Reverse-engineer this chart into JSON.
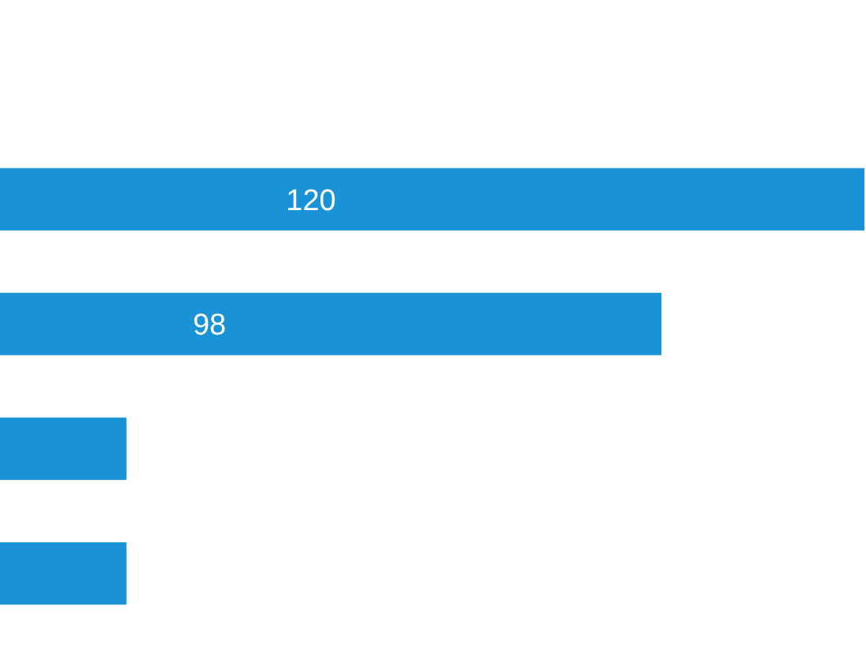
{
  "chart_data": {
    "type": "bar",
    "orientation": "horizontal",
    "categories": [
      null,
      null,
      null,
      null
    ],
    "values": [
      120,
      98,
      40,
      40
    ],
    "value_labels": [
      "120",
      "98",
      null,
      null
    ],
    "color": "#1a93d6"
  }
}
